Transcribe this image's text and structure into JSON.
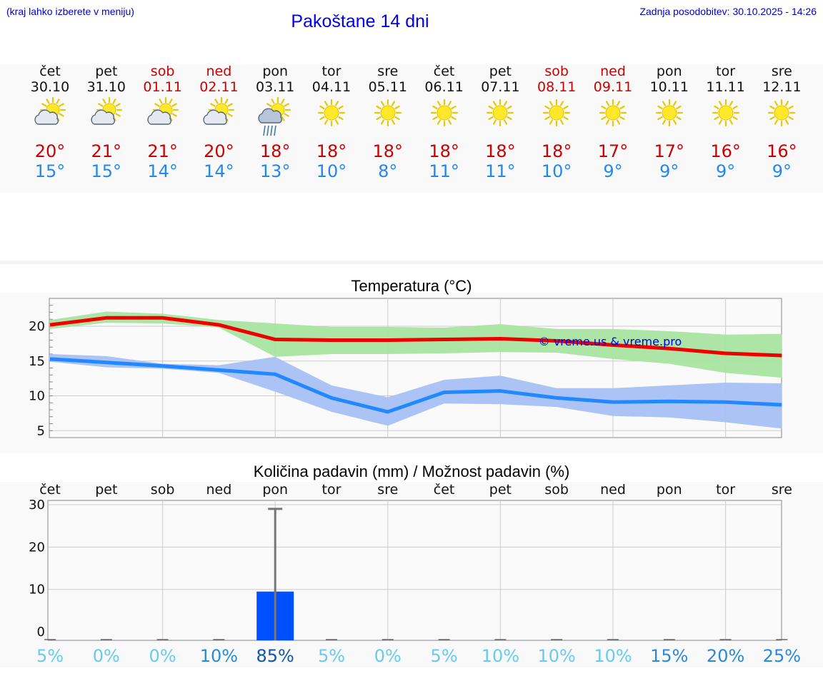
{
  "header": {
    "menu_hint": "(kraj lahko izberete v meniju)",
    "title": "Pakoštane 14 dni",
    "updated": "Zadnja posodobitev: 30.10.2025 - 14:26"
  },
  "days": [
    {
      "name": "čet",
      "date": "30.10",
      "weekend": false,
      "icon": "partly-cloudy-icon",
      "tmax": "20°",
      "tmin": "15°"
    },
    {
      "name": "pet",
      "date": "31.10",
      "weekend": false,
      "icon": "partly-cloudy-icon",
      "tmax": "21°",
      "tmin": "15°"
    },
    {
      "name": "sob",
      "date": "01.11",
      "weekend": true,
      "icon": "partly-cloudy-icon",
      "tmax": "21°",
      "tmin": "14°"
    },
    {
      "name": "ned",
      "date": "02.11",
      "weekend": true,
      "icon": "partly-cloudy-icon",
      "tmax": "20°",
      "tmin": "14°"
    },
    {
      "name": "pon",
      "date": "03.11",
      "weekend": false,
      "icon": "rain-cloud-sun-icon",
      "tmax": "18°",
      "tmin": "13°"
    },
    {
      "name": "tor",
      "date": "04.11",
      "weekend": false,
      "icon": "sun-icon",
      "tmax": "18°",
      "tmin": "10°"
    },
    {
      "name": "sre",
      "date": "05.11",
      "weekend": false,
      "icon": "sun-icon",
      "tmax": "18°",
      "tmin": "8°"
    },
    {
      "name": "čet",
      "date": "06.11",
      "weekend": false,
      "icon": "sun-icon",
      "tmax": "18°",
      "tmin": "11°"
    },
    {
      "name": "pet",
      "date": "07.11",
      "weekend": false,
      "icon": "sun-icon",
      "tmax": "18°",
      "tmin": "11°"
    },
    {
      "name": "sob",
      "date": "08.11",
      "weekend": true,
      "icon": "sun-icon",
      "tmax": "18°",
      "tmin": "10°"
    },
    {
      "name": "ned",
      "date": "09.11",
      "weekend": true,
      "icon": "sun-icon",
      "tmax": "17°",
      "tmin": "9°"
    },
    {
      "name": "pon",
      "date": "10.11",
      "weekend": false,
      "icon": "sun-icon",
      "tmax": "17°",
      "tmin": "9°"
    },
    {
      "name": "tor",
      "date": "11.11",
      "weekend": false,
      "icon": "sun-icon",
      "tmax": "16°",
      "tmin": "9°"
    },
    {
      "name": "sre",
      "date": "12.11",
      "weekend": false,
      "icon": "sun-icon",
      "tmax": "16°",
      "tmin": "9°"
    }
  ],
  "colors": {
    "max_line": "#ee0000",
    "min_line": "#2288ff",
    "max_band": "#a8e4a0",
    "min_band": "#a8c0f4",
    "bar": "#0050ff",
    "weekend": "#cc0000"
  },
  "chart_data": [
    {
      "type": "line",
      "title": "Temperatura (°C)",
      "watermark": "© vreme.us & vreme.pro",
      "ylim": [
        4,
        24
      ],
      "yticks": [
        5,
        10,
        15,
        20
      ],
      "grid": true,
      "series": [
        {
          "name": "max",
          "values": [
            20.2,
            21.2,
            21.2,
            20.2,
            18.1,
            18.0,
            18.0,
            18.1,
            18.2,
            17.9,
            17.3,
            16.8,
            16.1,
            15.8
          ],
          "band_low": [
            19.6,
            20.5,
            20.4,
            19.8,
            15.6,
            16.0,
            16.0,
            16.1,
            16.3,
            16.2,
            15.3,
            14.6,
            13.3,
            12.6
          ],
          "band_high": [
            20.9,
            22.1,
            21.8,
            20.9,
            20.4,
            19.9,
            19.9,
            19.8,
            20.3,
            19.6,
            19.6,
            19.3,
            18.8,
            18.9
          ]
        },
        {
          "name": "min",
          "values": [
            15.3,
            14.8,
            14.3,
            13.7,
            13.1,
            9.7,
            7.7,
            10.5,
            10.7,
            9.7,
            9.1,
            9.2,
            9.1,
            8.7
          ],
          "band_low": [
            14.9,
            14.1,
            13.9,
            13.3,
            10.6,
            7.7,
            5.7,
            8.9,
            8.8,
            8.4,
            7.1,
            6.9,
            6.2,
            5.3
          ],
          "band_high": [
            16.0,
            15.7,
            14.6,
            14.4,
            15.6,
            11.5,
            9.8,
            12.3,
            12.9,
            11.1,
            11.1,
            11.5,
            11.9,
            11.8
          ]
        }
      ]
    },
    {
      "type": "bar",
      "title": "Količina padavin (mm) / Možnost padavin (%)",
      "categories": [
        "čet",
        "pet",
        "sob",
        "ned",
        "pon",
        "tor",
        "sre",
        "čet",
        "pet",
        "sob",
        "ned",
        "pon",
        "tor",
        "sre"
      ],
      "ylim": [
        -2,
        31
      ],
      "yticks": [
        0,
        10,
        20,
        30
      ],
      "values": [
        0,
        0,
        0,
        0,
        9.5,
        0,
        0,
        0,
        0,
        0,
        0,
        0,
        0,
        0
      ],
      "error_high": [
        0,
        0,
        0,
        0,
        29,
        0,
        0,
        0,
        0,
        0,
        0,
        0,
        0,
        0
      ],
      "probability": [
        "5%",
        "0%",
        "0%",
        "10%",
        "85%",
        "5%",
        "0%",
        "5%",
        "10%",
        "10%",
        "10%",
        "15%",
        "20%",
        "25%"
      ],
      "probability_values": [
        5,
        0,
        0,
        10,
        85,
        5,
        0,
        5,
        10,
        10,
        10,
        15,
        20,
        25
      ]
    }
  ]
}
